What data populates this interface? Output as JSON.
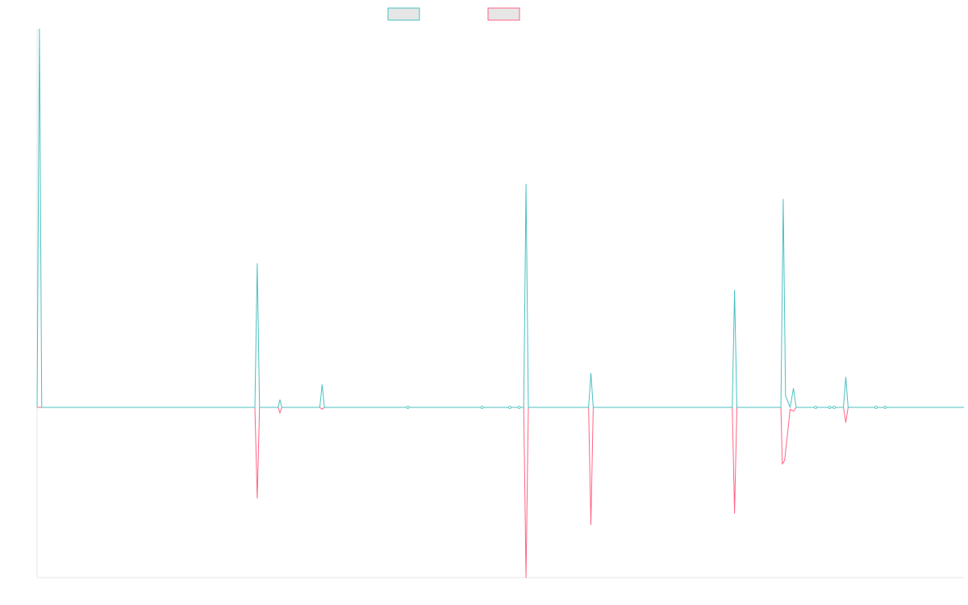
{
  "chart_data": {
    "type": "line",
    "title": "",
    "xlabel": "",
    "ylabel": "",
    "grid": false,
    "legend_placement": "top-center",
    "xlim": [
      0,
      200
    ],
    "ylim": [
      -0.45,
      1.0
    ],
    "series": [
      {
        "color": "#4bc0c0",
        "points": [
          [
            0,
            0.0
          ],
          [
            0.5,
            1.0
          ],
          [
            1,
            0.0
          ],
          [
            47,
            0.0
          ],
          [
            47.5,
            0.38
          ],
          [
            48,
            0.0
          ],
          [
            52,
            0.0
          ],
          [
            52.4,
            0.02
          ],
          [
            52.8,
            0.0
          ],
          [
            61,
            0.0
          ],
          [
            61.5,
            0.06
          ],
          [
            62,
            0.0
          ],
          [
            105,
            0.0
          ],
          [
            105.5,
            0.59
          ],
          [
            106,
            0.0
          ],
          [
            119,
            0.0
          ],
          [
            119.5,
            0.09
          ],
          [
            120,
            0.0
          ],
          [
            150,
            0.0
          ],
          [
            150.5,
            0.31
          ],
          [
            151,
            0.0
          ],
          [
            160.5,
            0.0
          ],
          [
            161,
            0.55
          ],
          [
            161.5,
            0.03
          ],
          [
            162.5,
            0.0
          ],
          [
            163.2,
            0.05
          ],
          [
            163.8,
            0.0
          ],
          [
            174,
            0.0
          ],
          [
            174.5,
            0.08
          ],
          [
            175,
            0.0
          ],
          [
            200,
            0.0
          ]
        ]
      },
      {
        "color": "#ff6384",
        "points": [
          [
            0,
            0.0
          ],
          [
            47,
            0.0
          ],
          [
            47.5,
            -0.24
          ],
          [
            48,
            0.0
          ],
          [
            52,
            0.0
          ],
          [
            52.4,
            -0.015
          ],
          [
            52.8,
            0.0
          ],
          [
            61,
            0.0
          ],
          [
            61.5,
            -0.005
          ],
          [
            62,
            0.0
          ],
          [
            105,
            0.0
          ],
          [
            105.5,
            -0.45
          ],
          [
            106,
            0.0
          ],
          [
            119,
            0.0
          ],
          [
            119.5,
            -0.31
          ],
          [
            120,
            0.0
          ],
          [
            150,
            0.0
          ],
          [
            150.5,
            -0.28
          ],
          [
            151,
            0.0
          ],
          [
            160.5,
            0.0
          ],
          [
            160.8,
            -0.15
          ],
          [
            161.3,
            -0.14
          ],
          [
            162.5,
            -0.005
          ],
          [
            163.2,
            -0.01
          ],
          [
            163.8,
            0.0
          ],
          [
            174,
            0.0
          ],
          [
            174.5,
            -0.04
          ],
          [
            175,
            0.0
          ],
          [
            200,
            0.0
          ]
        ]
      }
    ],
    "legend_fill": "#e6e6e6"
  }
}
